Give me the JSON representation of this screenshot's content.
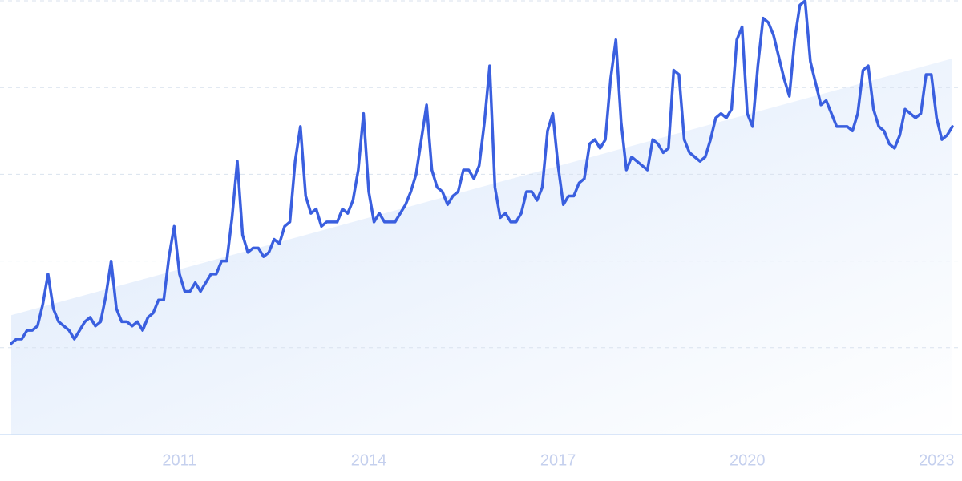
{
  "chart_data": {
    "type": "line",
    "categories": [
      null,
      null,
      null,
      null,
      null,
      null,
      null,
      null,
      null,
      null,
      null,
      null,
      null,
      null,
      null,
      null,
      null,
      null,
      null,
      null,
      null,
      null,
      null,
      null,
      null,
      null,
      null,
      null,
      null,
      null,
      null,
      null,
      "2011",
      null,
      null,
      null,
      null,
      null,
      null,
      null,
      null,
      null,
      null,
      null,
      null,
      null,
      null,
      null,
      null,
      null,
      null,
      null,
      null,
      null,
      null,
      null,
      null,
      null,
      null,
      null,
      null,
      null,
      null,
      null,
      null,
      null,
      null,
      null,
      "2014",
      null,
      null,
      null,
      null,
      null,
      null,
      null,
      null,
      null,
      null,
      null,
      null,
      null,
      null,
      null,
      null,
      null,
      null,
      null,
      null,
      null,
      null,
      null,
      null,
      null,
      null,
      null,
      null,
      null,
      null,
      null,
      null,
      null,
      null,
      null,
      "2017",
      null,
      null,
      null,
      null,
      null,
      null,
      null,
      null,
      null,
      null,
      null,
      null,
      null,
      null,
      null,
      null,
      null,
      null,
      null,
      null,
      null,
      null,
      null,
      null,
      null,
      null,
      null,
      null,
      null,
      null,
      null,
      null,
      null,
      null,
      null,
      "2020",
      null,
      null,
      null,
      null,
      null,
      null,
      null,
      null,
      null,
      null,
      null,
      null,
      null,
      null,
      null,
      null,
      null,
      null,
      null,
      null,
      null,
      null,
      null,
      null,
      null,
      null,
      null,
      null,
      null,
      null,
      null,
      null,
      null,
      null,
      null,
      "2023",
      null,
      null,
      null
    ],
    "series": [
      {
        "color": "#3a5fdf",
        "values": [
          21,
          22,
          22,
          24,
          24,
          25,
          30,
          37,
          29,
          26,
          25,
          24,
          22,
          24,
          26,
          27,
          25,
          26,
          32,
          40,
          29,
          26,
          26,
          25,
          26,
          24,
          27,
          28,
          31,
          31,
          41,
          48,
          37,
          33,
          33,
          35,
          33,
          35,
          37,
          37,
          40,
          40,
          50,
          63,
          46,
          42,
          43,
          43,
          41,
          42,
          45,
          44,
          48,
          49,
          63,
          71,
          55,
          51,
          52,
          48,
          49,
          49,
          49,
          52,
          51,
          54,
          61,
          74,
          56,
          49,
          51,
          49,
          49,
          49,
          51,
          53,
          56,
          60,
          68,
          76,
          61,
          57,
          56,
          53,
          55,
          56,
          61,
          61,
          59,
          62,
          72,
          85,
          57,
          50,
          51,
          49,
          49,
          51,
          56,
          56,
          54,
          57,
          70,
          74,
          62,
          53,
          55,
          55,
          58,
          59,
          67,
          68,
          66,
          68,
          82,
          91,
          72,
          61,
          64,
          63,
          62,
          61,
          68,
          67,
          65,
          66,
          84,
          83,
          68,
          65,
          64,
          63,
          64,
          68,
          73,
          74,
          73,
          75,
          91,
          94,
          74,
          71,
          85,
          96,
          95,
          92,
          87,
          82,
          78,
          91,
          99,
          100,
          86,
          81,
          76,
          77,
          74,
          71,
          71,
          71,
          70,
          74,
          84,
          85,
          75,
          71,
          70,
          67,
          66,
          69,
          75,
          74,
          73,
          74,
          83,
          83,
          73,
          68,
          69,
          71
        ]
      }
    ],
    "trend": [
      27.5,
      86.7
    ],
    "ylim": [
      0,
      100
    ],
    "yticks": [
      0,
      20,
      40,
      60,
      80,
      100
    ],
    "grid": true
  }
}
